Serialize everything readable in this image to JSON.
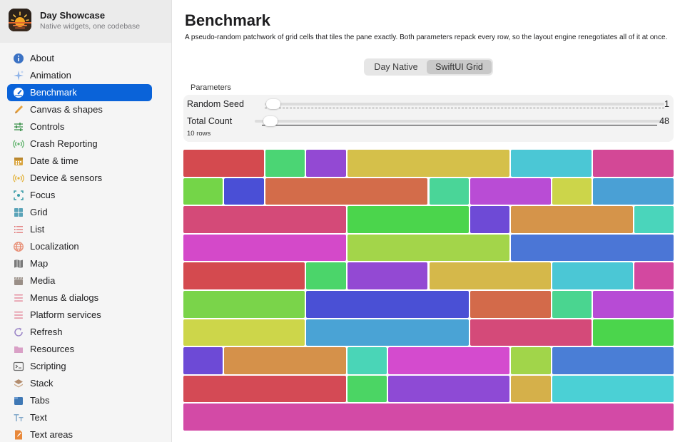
{
  "app": {
    "name": "Day Showcase",
    "subtitle": "Native widgets, one codebase",
    "logo_icon": "sunset-logo-icon"
  },
  "sidebar": {
    "selected": "Benchmark",
    "items": [
      {
        "label": "About",
        "icon": "info-icon",
        "color": "#3b72c4"
      },
      {
        "label": "Animation",
        "icon": "sparkles-icon",
        "color": "#8fb3e8"
      },
      {
        "label": "Benchmark",
        "icon": "gauge-icon",
        "color": "#ffffff"
      },
      {
        "label": "Canvas & shapes",
        "icon": "pencil-icon",
        "color": "#e7a13a"
      },
      {
        "label": "Controls",
        "icon": "sliders-icon",
        "color": "#4c9a5a"
      },
      {
        "label": "Crash Reporting",
        "icon": "broadcast-icon",
        "color": "#5db26a"
      },
      {
        "label": "Date & time",
        "icon": "calendar-icon",
        "color": "#d9a541"
      },
      {
        "label": "Device & sensors",
        "icon": "sensor-icon",
        "color": "#e3b33c"
      },
      {
        "label": "Focus",
        "icon": "focus-icon",
        "color": "#3a9ca8"
      },
      {
        "label": "Grid",
        "icon": "grid-icon",
        "color": "#5aa3b8"
      },
      {
        "label": "List",
        "icon": "list-icon",
        "color": "#e06a6a"
      },
      {
        "label": "Localization",
        "icon": "globe-icon",
        "color": "#e78a70"
      },
      {
        "label": "Map",
        "icon": "map-icon",
        "color": "#7a7a7a"
      },
      {
        "label": "Media",
        "icon": "clapperboard-icon",
        "color": "#9a8f87"
      },
      {
        "label": "Menus & dialogs",
        "icon": "menu-icon",
        "color": "#e58fa0"
      },
      {
        "label": "Platform services",
        "icon": "services-icon",
        "color": "#e58fa0"
      },
      {
        "label": "Refresh",
        "icon": "refresh-icon",
        "color": "#9a84c7"
      },
      {
        "label": "Resources",
        "icon": "folder-icon",
        "color": "#d9a0c6"
      },
      {
        "label": "Scripting",
        "icon": "terminal-icon",
        "color": "#6b6b6b"
      },
      {
        "label": "Stack",
        "icon": "stack-icon",
        "color": "#b38d6e"
      },
      {
        "label": "Tabs",
        "icon": "tabs-icon",
        "color": "#3f78b5"
      },
      {
        "label": "Text",
        "icon": "text-icon",
        "color": "#7fa6c9"
      },
      {
        "label": "Text areas",
        "icon": "document-icon",
        "color": "#e8883a"
      }
    ]
  },
  "main": {
    "title": "Benchmark",
    "description": "A pseudo-random patchwork of grid cells that tiles the pane exactly. Both parameters repack every row, so the layout engine renegotiates all of it at once.",
    "segments": [
      {
        "label": "Day Native",
        "selected": false
      },
      {
        "label": "SwiftUI Grid",
        "selected": true
      }
    ],
    "parameters": {
      "title": "Parameters",
      "random_seed": {
        "label": "Random Seed",
        "value": "1",
        "min": 1,
        "max": 100,
        "current": 1
      },
      "total_count": {
        "label": "Total Count",
        "value": "48",
        "min": 48,
        "max": 1000,
        "current": 48
      },
      "rows_caption": "10 rows"
    },
    "grid": {
      "columns": 12,
      "rows": [
        [
          [
            2,
            "#d44a4f"
          ],
          [
            1,
            "#4bd574"
          ],
          [
            1,
            "#9349d3"
          ],
          [
            4,
            "#d5c04a"
          ],
          [
            2,
            "#4bc7d5"
          ],
          [
            2,
            "#d34896"
          ]
        ],
        [
          [
            1,
            "#74d548"
          ],
          [
            1,
            "#4a4fd6"
          ],
          [
            4,
            "#d36c4a"
          ],
          [
            1,
            "#4ad598"
          ],
          [
            2,
            "#b94cd5"
          ],
          [
            1,
            "#ccd54a"
          ],
          [
            2,
            "#4aa0d5"
          ]
        ],
        [
          [
            4,
            "#d44a78"
          ],
          [
            3,
            "#4bd54c"
          ],
          [
            1,
            "#6e4ad6"
          ],
          [
            3,
            "#d5944a"
          ],
          [
            1,
            "#4ad5bb"
          ]
        ],
        [
          [
            4,
            "#d449c9"
          ],
          [
            4,
            "#a3d54a"
          ],
          [
            4,
            "#4b76d6"
          ]
        ],
        [
          [
            3,
            "#d44a4f"
          ],
          [
            1,
            "#4bd56a"
          ],
          [
            2,
            "#9349d3"
          ],
          [
            3,
            "#d5b84a"
          ],
          [
            2,
            "#4bc7d5"
          ],
          [
            1,
            "#d348a0"
          ]
        ],
        [
          [
            3,
            "#7ad44a"
          ],
          [
            4,
            "#4a50d5"
          ],
          [
            2,
            "#d36a4a"
          ],
          [
            1,
            "#4ad590"
          ],
          [
            2,
            "#b74bd5"
          ]
        ],
        [
          [
            3,
            "#cdd64a"
          ],
          [
            4,
            "#4aa3d5"
          ],
          [
            3,
            "#d44a79"
          ],
          [
            2,
            "#4bd54c"
          ]
        ],
        [
          [
            1,
            "#6d4ad6"
          ],
          [
            3,
            "#d5914a"
          ],
          [
            1,
            "#4ad5b7"
          ],
          [
            3,
            "#d44bce"
          ],
          [
            1,
            "#a1d54a"
          ],
          [
            3,
            "#4a7ed6"
          ]
        ],
        [
          [
            4,
            "#d44a55"
          ],
          [
            1,
            "#4bd564"
          ],
          [
            3,
            "#8e4ad5"
          ],
          [
            1,
            "#d5b04a"
          ],
          [
            3,
            "#4bd0d5"
          ]
        ],
        [
          [
            12,
            "#d34aa6"
          ]
        ]
      ]
    }
  }
}
